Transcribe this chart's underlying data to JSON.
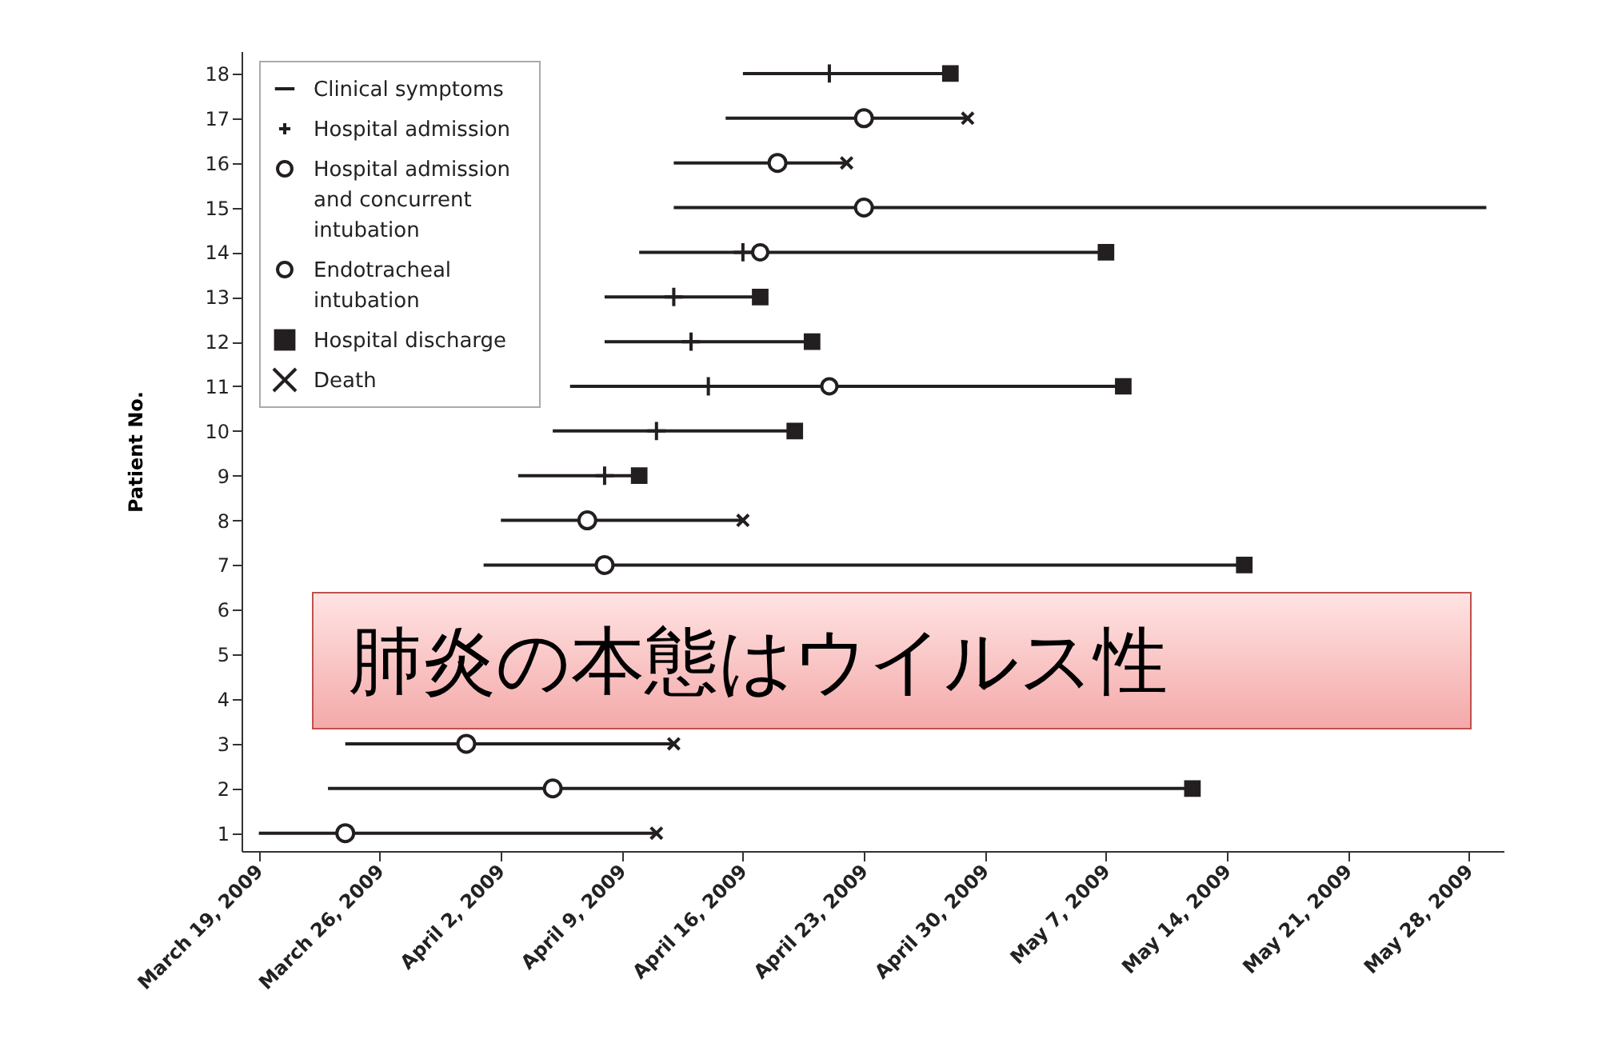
{
  "chart_data": {
    "type": "scatter",
    "ylabel": "Patient No.",
    "annotations": [
      "肺炎の本態はウイルス性"
    ],
    "ylim": [
      0.6,
      18.5
    ],
    "yticks": [
      1,
      2,
      3,
      4,
      5,
      6,
      7,
      8,
      9,
      10,
      11,
      12,
      13,
      14,
      15,
      16,
      17,
      18
    ],
    "xlim": [
      "2009-03-18",
      "2009-05-30"
    ],
    "xticks": [
      {
        "value": "2009-03-19",
        "label": "March 19, 2009"
      },
      {
        "value": "2009-03-26",
        "label": "March 26, 2009"
      },
      {
        "value": "2009-04-02",
        "label": "April 2, 2009"
      },
      {
        "value": "2009-04-09",
        "label": "April 9, 2009"
      },
      {
        "value": "2009-04-16",
        "label": "April 16, 2009"
      },
      {
        "value": "2009-04-23",
        "label": "April 23, 2009"
      },
      {
        "value": "2009-04-30",
        "label": "April 30, 2009"
      },
      {
        "value": "2009-05-07",
        "label": "May 7, 2009"
      },
      {
        "value": "2009-05-14",
        "label": "May 14, 2009"
      },
      {
        "value": "2009-05-21",
        "label": "May 21, 2009"
      },
      {
        "value": "2009-05-28",
        "label": "May 28, 2009"
      }
    ],
    "legend": "top left",
    "series": [
      {
        "name": "Clinical symptoms",
        "type": "line",
        "color": "#231f20",
        "line_style": "solid",
        "x": [
          "2009-04-16",
          "2009-04-28"
        ],
        "values": [
          18,
          18
        ]
      },
      {
        "type": "line",
        "color": "#231f20",
        "line_style": "solid",
        "x": [
          "2009-04-15",
          "2009-04-29"
        ],
        "values": [
          17,
          17
        ]
      },
      {
        "type": "line",
        "color": "#231f20",
        "line_style": "solid",
        "x": [
          "2009-04-12",
          "2009-04-22"
        ],
        "values": [
          16,
          16
        ]
      },
      {
        "type": "line",
        "color": "#231f20",
        "line_style": "solid",
        "x": [
          "2009-04-12",
          "2009-05-29"
        ],
        "values": [
          15,
          15
        ]
      },
      {
        "type": "line",
        "color": "#231f20",
        "line_style": "solid",
        "x": [
          "2009-04-10",
          "2009-05-07"
        ],
        "values": [
          14,
          14
        ]
      },
      {
        "type": "line",
        "color": "#231f20",
        "line_style": "solid",
        "x": [
          "2009-04-08",
          "2009-04-17"
        ],
        "values": [
          13,
          13
        ]
      },
      {
        "type": "line",
        "color": "#231f20",
        "line_style": "solid",
        "x": [
          "2009-04-08",
          "2009-04-20"
        ],
        "values": [
          12,
          12
        ]
      },
      {
        "type": "line",
        "color": "#231f20",
        "line_style": "solid",
        "x": [
          "2009-04-06",
          "2009-05-08"
        ],
        "values": [
          11,
          11
        ]
      },
      {
        "type": "line",
        "color": "#231f20",
        "line_style": "solid",
        "x": [
          "2009-04-05",
          "2009-04-19"
        ],
        "values": [
          10,
          10
        ]
      },
      {
        "type": "line",
        "color": "#231f20",
        "line_style": "solid",
        "x": [
          "2009-04-03",
          "2009-04-10"
        ],
        "values": [
          9,
          9
        ]
      },
      {
        "type": "line",
        "color": "#231f20",
        "line_style": "solid",
        "x": [
          "2009-04-02",
          "2009-04-16"
        ],
        "values": [
          8,
          8
        ]
      },
      {
        "type": "line",
        "color": "#231f20",
        "line_style": "solid",
        "x": [
          "2009-04-01",
          "2009-05-15"
        ],
        "values": [
          7,
          7
        ]
      },
      {
        "type": "line",
        "color": "#231f20",
        "line_style": "solid",
        "x": [
          "2009-03-24",
          "2009-04-12"
        ],
        "values": [
          3,
          3
        ]
      },
      {
        "type": "line",
        "color": "#231f20",
        "line_style": "solid",
        "x": [
          "2009-03-23",
          "2009-05-12"
        ],
        "values": [
          2,
          2
        ]
      },
      {
        "type": "line",
        "color": "#231f20",
        "line_style": "solid",
        "x": [
          "2009-03-19",
          "2009-04-11"
        ],
        "values": [
          1,
          1
        ]
      },
      {
        "name": "Hospital admission",
        "color": "#231f20",
        "marker": "cross",
        "x": [
          "2009-04-21",
          "2009-04-16",
          "2009-04-12",
          "2009-04-13",
          "2009-04-14",
          "2009-04-11",
          "2009-04-08"
        ],
        "values": [
          18,
          14,
          13,
          12,
          11,
          10,
          9
        ]
      },
      {
        "name": "Hospital admission and concurrent intubation",
        "color": "#231f20",
        "marker": "circle",
        "x": [
          "2009-04-23",
          "2009-04-18",
          "2009-04-23",
          "2009-04-07",
          "2009-04-08",
          "2009-03-31",
          "2009-04-05",
          "2009-03-24"
        ],
        "values": [
          17,
          16,
          15,
          8,
          7,
          3,
          2,
          1
        ]
      },
      {
        "name": "Endotracheal intubation",
        "color": "#231f20",
        "marker": "circle",
        "x": [
          "2009-04-17",
          "2009-04-21"
        ],
        "values": [
          14,
          11
        ]
      },
      {
        "name": "Hospital discharge",
        "color": "#231f20",
        "marker": "square",
        "x": [
          "2009-04-28",
          "2009-05-07",
          "2009-04-17",
          "2009-04-20",
          "2009-05-08",
          "2009-04-19",
          "2009-04-10",
          "2009-05-15",
          "2009-05-12"
        ],
        "values": [
          18,
          14,
          13,
          12,
          11,
          10,
          9,
          7,
          2
        ]
      },
      {
        "name": "Death",
        "color": "#231f20",
        "marker": "x",
        "x": [
          "2009-04-29",
          "2009-04-22",
          "2009-04-16",
          "2009-04-12",
          "2009-04-11"
        ],
        "values": [
          17,
          16,
          8,
          3,
          1
        ]
      }
    ]
  }
}
